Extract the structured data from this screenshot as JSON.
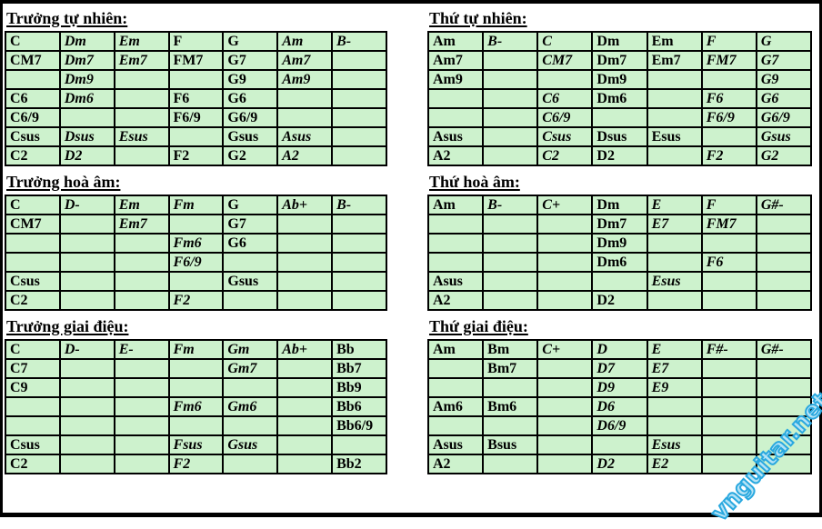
{
  "theme": {
    "cell-bg": "#cdf2cd",
    "border-color": "#000000",
    "watermark-color": "#29a8df"
  },
  "watermark": {
    "text": "vnguitar.net"
  },
  "sections": [
    {
      "title": "Trưởng tự nhiên:",
      "rows": [
        [
          {
            "t": "C"
          },
          {
            "t": "Dm",
            "em": true
          },
          {
            "t": "Em",
            "em": true
          },
          {
            "t": "F"
          },
          {
            "t": "G"
          },
          {
            "t": "Am",
            "em": true
          },
          {
            "t": "B-",
            "em": true
          }
        ],
        [
          {
            "t": "CM7"
          },
          {
            "t": "Dm7",
            "em": true
          },
          {
            "t": "Em7",
            "em": true
          },
          {
            "t": "FM7"
          },
          {
            "t": "G7"
          },
          {
            "t": "Am7",
            "em": true
          },
          null
        ],
        [
          null,
          {
            "t": "Dm9",
            "em": true
          },
          null,
          null,
          {
            "t": "G9"
          },
          {
            "t": "Am9",
            "em": true
          },
          null
        ],
        [
          {
            "t": "C6"
          },
          {
            "t": "Dm6",
            "em": true
          },
          null,
          {
            "t": "F6"
          },
          {
            "t": "G6"
          },
          null,
          null
        ],
        [
          {
            "t": "C6/9"
          },
          null,
          null,
          {
            "t": "F6/9"
          },
          {
            "t": "G6/9"
          },
          null,
          null
        ],
        [
          {
            "t": "Csus"
          },
          {
            "t": "Dsus",
            "em": true
          },
          {
            "t": "Esus",
            "em": true
          },
          null,
          {
            "t": "Gsus"
          },
          {
            "t": "Asus",
            "em": true
          },
          null
        ],
        [
          {
            "t": "C2"
          },
          {
            "t": "D2",
            "em": true
          },
          null,
          {
            "t": "F2"
          },
          {
            "t": "G2"
          },
          {
            "t": "A2",
            "em": true
          },
          null
        ]
      ]
    },
    {
      "title": "Thứ tự nhiên:",
      "rows": [
        [
          {
            "t": "Am"
          },
          {
            "t": "B-",
            "em": true
          },
          {
            "t": "C",
            "em": true
          },
          {
            "t": "Dm"
          },
          {
            "t": "Em"
          },
          {
            "t": "F",
            "em": true
          },
          {
            "t": "G",
            "em": true
          }
        ],
        [
          {
            "t": "Am7"
          },
          null,
          {
            "t": "CM7",
            "em": true
          },
          {
            "t": "Dm7"
          },
          {
            "t": "Em7"
          },
          {
            "t": "FM7",
            "em": true
          },
          {
            "t": "G7",
            "em": true
          }
        ],
        [
          {
            "t": "Am9"
          },
          null,
          null,
          {
            "t": "Dm9"
          },
          null,
          null,
          {
            "t": "G9",
            "em": true
          }
        ],
        [
          null,
          null,
          {
            "t": "C6",
            "em": true
          },
          {
            "t": "Dm6"
          },
          null,
          {
            "t": "F6",
            "em": true
          },
          {
            "t": "G6",
            "em": true
          }
        ],
        [
          null,
          null,
          {
            "t": "C6/9",
            "em": true
          },
          null,
          null,
          {
            "t": "F6/9",
            "em": true
          },
          {
            "t": "G6/9",
            "em": true
          }
        ],
        [
          {
            "t": "Asus"
          },
          null,
          {
            "t": "Csus",
            "em": true
          },
          {
            "t": "Dsus"
          },
          {
            "t": "Esus"
          },
          null,
          {
            "t": "Gsus",
            "em": true
          }
        ],
        [
          {
            "t": "A2"
          },
          null,
          {
            "t": "C2",
            "em": true
          },
          {
            "t": "D2"
          },
          null,
          {
            "t": "F2",
            "em": true
          },
          {
            "t": "G2",
            "em": true
          }
        ]
      ]
    },
    {
      "title": "Trưởng hoà âm:",
      "rows": [
        [
          {
            "t": "C"
          },
          {
            "t": "D-",
            "em": true
          },
          {
            "t": "Em",
            "em": true
          },
          {
            "t": "Fm",
            "em": true
          },
          {
            "t": "G"
          },
          {
            "t": "Ab+",
            "em": true
          },
          {
            "t": "B-",
            "em": true
          }
        ],
        [
          {
            "t": "CM7"
          },
          null,
          {
            "t": "Em7",
            "em": true
          },
          null,
          {
            "t": "G7"
          },
          null,
          null
        ],
        [
          null,
          null,
          null,
          {
            "t": "Fm6",
            "em": true
          },
          {
            "t": "G6"
          },
          null,
          null
        ],
        [
          null,
          null,
          null,
          {
            "t": "F6/9",
            "em": true
          },
          null,
          null,
          null
        ],
        [
          {
            "t": "Csus"
          },
          null,
          null,
          null,
          {
            "t": "Gsus"
          },
          null,
          null
        ],
        [
          {
            "t": "C2"
          },
          null,
          null,
          {
            "t": "F2",
            "em": true
          },
          null,
          null,
          null
        ]
      ]
    },
    {
      "title": "Thứ hoà âm:",
      "rows": [
        [
          {
            "t": "Am"
          },
          {
            "t": "B-",
            "em": true
          },
          {
            "t": "C+",
            "em": true
          },
          {
            "t": "Dm"
          },
          {
            "t": "E",
            "em": true
          },
          {
            "t": "F",
            "em": true
          },
          {
            "t": "G#-",
            "em": true
          }
        ],
        [
          null,
          null,
          null,
          {
            "t": "Dm7"
          },
          {
            "t": "E7",
            "em": true
          },
          {
            "t": "FM7",
            "em": true
          },
          null
        ],
        [
          null,
          null,
          null,
          {
            "t": "Dm9"
          },
          null,
          null,
          null
        ],
        [
          null,
          null,
          null,
          {
            "t": "Dm6"
          },
          null,
          {
            "t": "F6",
            "em": true
          },
          null
        ],
        [
          {
            "t": "Asus"
          },
          null,
          null,
          null,
          {
            "t": "Esus",
            "em": true
          },
          null,
          null
        ],
        [
          {
            "t": "A2"
          },
          null,
          null,
          {
            "t": "D2"
          },
          null,
          null,
          null
        ]
      ]
    },
    {
      "title": "Trưởng giai điệu:",
      "rows": [
        [
          {
            "t": "C"
          },
          {
            "t": "D-",
            "em": true
          },
          {
            "t": "E-",
            "em": true
          },
          {
            "t": "Fm",
            "em": true
          },
          {
            "t": "Gm",
            "em": true
          },
          {
            "t": "Ab+",
            "em": true
          },
          {
            "t": "Bb"
          }
        ],
        [
          {
            "t": "C7"
          },
          null,
          null,
          null,
          {
            "t": "Gm7",
            "em": true
          },
          null,
          {
            "t": "Bb7"
          }
        ],
        [
          {
            "t": "C9"
          },
          null,
          null,
          null,
          null,
          null,
          {
            "t": "Bb9"
          }
        ],
        [
          null,
          null,
          null,
          {
            "t": "Fm6",
            "em": true
          },
          {
            "t": "Gm6",
            "em": true
          },
          null,
          {
            "t": "Bb6"
          }
        ],
        [
          null,
          null,
          null,
          null,
          null,
          null,
          {
            "t": "Bb6/9"
          }
        ],
        [
          {
            "t": "Csus"
          },
          null,
          null,
          {
            "t": "Fsus",
            "em": true
          },
          {
            "t": "Gsus",
            "em": true
          },
          null,
          null
        ],
        [
          {
            "t": "C2"
          },
          null,
          null,
          {
            "t": "F2",
            "em": true
          },
          null,
          null,
          {
            "t": "Bb2"
          }
        ]
      ]
    },
    {
      "title": "Thứ giai điệu:",
      "rows": [
        [
          {
            "t": "Am"
          },
          {
            "t": "Bm"
          },
          {
            "t": "C+",
            "em": true
          },
          {
            "t": "D",
            "em": true
          },
          {
            "t": "E",
            "em": true
          },
          {
            "t": "F#-",
            "em": true
          },
          {
            "t": "G#-",
            "em": true
          }
        ],
        [
          null,
          {
            "t": "Bm7"
          },
          null,
          {
            "t": "D7",
            "em": true
          },
          {
            "t": "E7",
            "em": true
          },
          null,
          null
        ],
        [
          null,
          null,
          null,
          {
            "t": "D9",
            "em": true
          },
          {
            "t": "E9",
            "em": true
          },
          null,
          null
        ],
        [
          {
            "t": "Am6"
          },
          {
            "t": "Bm6"
          },
          null,
          {
            "t": "D6",
            "em": true
          },
          null,
          null,
          null
        ],
        [
          null,
          null,
          null,
          {
            "t": "D6/9",
            "em": true
          },
          null,
          null,
          null
        ],
        [
          {
            "t": "Asus"
          },
          {
            "t": "Bsus"
          },
          null,
          null,
          {
            "t": "Esus",
            "em": true
          },
          null,
          null
        ],
        [
          {
            "t": "A2"
          },
          null,
          null,
          {
            "t": "D2",
            "em": true
          },
          {
            "t": "E2",
            "em": true
          },
          null,
          null
        ]
      ]
    }
  ]
}
